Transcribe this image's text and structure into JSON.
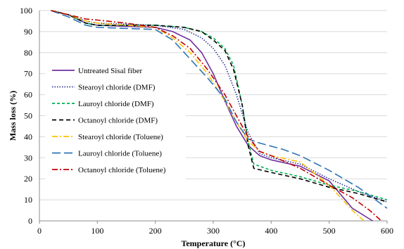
{
  "chart_data": {
    "type": "line",
    "title": "",
    "xlabel": "Temperature (°C)",
    "ylabel": "Mass loss (%)",
    "xlim": [
      0,
      600
    ],
    "ylim": [
      0,
      100
    ],
    "xticks": [
      0,
      100,
      200,
      300,
      400,
      500,
      600
    ],
    "yticks": [
      0,
      10,
      20,
      30,
      40,
      50,
      60,
      70,
      80,
      90,
      100
    ],
    "grid": "horizontal",
    "legend_position": "center-left",
    "series": [
      {
        "name": "Untreated Sisal fiber",
        "color": "#7030a0",
        "dash": "solid",
        "points": [
          [
            20,
            100
          ],
          [
            50,
            98
          ],
          [
            80,
            94
          ],
          [
            100,
            93
          ],
          [
            150,
            92.5
          ],
          [
            200,
            92
          ],
          [
            230,
            90
          ],
          [
            260,
            86
          ],
          [
            280,
            80
          ],
          [
            300,
            70
          ],
          [
            320,
            57
          ],
          [
            340,
            45
          ],
          [
            360,
            36
          ],
          [
            380,
            31
          ],
          [
            400,
            29
          ],
          [
            450,
            26
          ],
          [
            500,
            19
          ],
          [
            540,
            6
          ],
          [
            575,
            0
          ]
        ]
      },
      {
        "name": "Stearoyl chloride (DMF)",
        "color": "#2f3699",
        "dash": "dotted",
        "points": [
          [
            20,
            100
          ],
          [
            50,
            98
          ],
          [
            80,
            95
          ],
          [
            100,
            94
          ],
          [
            150,
            93.5
          ],
          [
            200,
            93
          ],
          [
            250,
            91
          ],
          [
            280,
            87
          ],
          [
            300,
            82
          ],
          [
            320,
            74
          ],
          [
            340,
            60
          ],
          [
            360,
            42
          ],
          [
            380,
            32
          ],
          [
            400,
            30
          ],
          [
            450,
            27
          ],
          [
            500,
            20
          ],
          [
            550,
            14
          ],
          [
            600,
            9
          ]
        ]
      },
      {
        "name": "Lauroyl chloride (DMF)",
        "color": "#00b050",
        "dash": "short-dash",
        "points": [
          [
            20,
            100
          ],
          [
            50,
            98
          ],
          [
            80,
            94
          ],
          [
            100,
            93
          ],
          [
            150,
            93
          ],
          [
            200,
            93
          ],
          [
            250,
            92
          ],
          [
            280,
            90
          ],
          [
            300,
            87
          ],
          [
            320,
            82
          ],
          [
            335,
            74
          ],
          [
            350,
            55
          ],
          [
            360,
            38
          ],
          [
            370,
            27
          ],
          [
            400,
            24
          ],
          [
            450,
            21
          ],
          [
            500,
            17
          ],
          [
            550,
            14
          ],
          [
            600,
            10
          ]
        ]
      },
      {
        "name": "Octanoyl chloride (DMF)",
        "color": "#000000",
        "dash": "dash",
        "points": [
          [
            20,
            100
          ],
          [
            50,
            98
          ],
          [
            80,
            94
          ],
          [
            100,
            93
          ],
          [
            150,
            93
          ],
          [
            200,
            93
          ],
          [
            250,
            92
          ],
          [
            280,
            90
          ],
          [
            300,
            86
          ],
          [
            320,
            81
          ],
          [
            335,
            72
          ],
          [
            350,
            55
          ],
          [
            360,
            36
          ],
          [
            370,
            25
          ],
          [
            400,
            23
          ],
          [
            450,
            20
          ],
          [
            500,
            16
          ],
          [
            550,
            13
          ],
          [
            600,
            9
          ]
        ]
      },
      {
        "name": "Stearoyl chloride (Toluene)",
        "color": "#ffc000",
        "dash": "dash-dot",
        "points": [
          [
            20,
            100
          ],
          [
            50,
            98
          ],
          [
            80,
            95
          ],
          [
            100,
            94
          ],
          [
            150,
            93
          ],
          [
            200,
            92
          ],
          [
            230,
            87
          ],
          [
            260,
            80
          ],
          [
            290,
            70
          ],
          [
            320,
            57
          ],
          [
            340,
            47
          ],
          [
            360,
            38
          ],
          [
            380,
            33
          ],
          [
            400,
            31
          ],
          [
            450,
            28
          ],
          [
            500,
            17
          ],
          [
            540,
            5
          ],
          [
            560,
            0
          ]
        ]
      },
      {
        "name": "Lauroyl chloride (Toluene)",
        "color": "#2e75b6",
        "dash": "long-dash",
        "points": [
          [
            20,
            100
          ],
          [
            50,
            97
          ],
          [
            80,
            93
          ],
          [
            100,
            92
          ],
          [
            150,
            91.5
          ],
          [
            200,
            91
          ],
          [
            230,
            86
          ],
          [
            260,
            77
          ],
          [
            290,
            68
          ],
          [
            320,
            58
          ],
          [
            340,
            47
          ],
          [
            360,
            39
          ],
          [
            380,
            37
          ],
          [
            420,
            34
          ],
          [
            450,
            31
          ],
          [
            500,
            24
          ],
          [
            550,
            16
          ],
          [
            600,
            6
          ]
        ]
      },
      {
        "name": "Octanoyl chloride (Toluene)",
        "color": "#c00000",
        "dash": "dash-dot",
        "points": [
          [
            20,
            100
          ],
          [
            50,
            98
          ],
          [
            80,
            96
          ],
          [
            100,
            95.5
          ],
          [
            150,
            94
          ],
          [
            200,
            92
          ],
          [
            230,
            88
          ],
          [
            260,
            82
          ],
          [
            290,
            72
          ],
          [
            320,
            60
          ],
          [
            340,
            50
          ],
          [
            360,
            40
          ],
          [
            380,
            33
          ],
          [
            400,
            31
          ],
          [
            450,
            25
          ],
          [
            500,
            17
          ],
          [
            540,
            11
          ],
          [
            570,
            5
          ],
          [
            590,
            0
          ]
        ]
      }
    ]
  }
}
